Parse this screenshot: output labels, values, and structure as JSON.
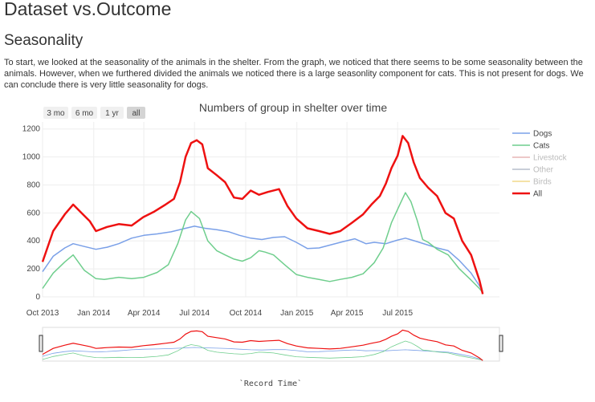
{
  "page": {
    "title": "Dataset vs.Outcome",
    "section_heading": "Seasonality",
    "paragraph": "To start, we looked at the seasonality of the animals in the shelter. From the graph, we noticed that there seems to be some seasonality between the animals. However, when we furthered divided the animals we noticed there is a large seasonlity component for cats. This is not present for dogs. We can conclude there is very little seasonality for dogs."
  },
  "range_buttons": [
    "3 mo",
    "6 mo",
    "1 yr",
    "all"
  ],
  "active_button": "all",
  "chart_data": {
    "type": "line",
    "title": "Numbers of group in shelter over time",
    "xlabel": "",
    "ylabel": "",
    "rangeslider_label": "`Record Time`",
    "x_range": [
      "2013-10-01",
      "2015-12-31"
    ],
    "ylim": [
      0,
      1250
    ],
    "y_ticks": [
      0,
      200,
      400,
      600,
      800,
      1000,
      1200
    ],
    "x_ticks": [
      {
        "date": "2013-10-01",
        "label": "Oct 2013"
      },
      {
        "date": "2014-01-01",
        "label": "Jan 2014"
      },
      {
        "date": "2014-04-01",
        "label": "Apr 2014"
      },
      {
        "date": "2014-07-01",
        "label": "Jul 2014"
      },
      {
        "date": "2014-10-01",
        "label": "Oct 2014"
      },
      {
        "date": "2015-01-01",
        "label": "Jan 2015"
      },
      {
        "date": "2015-04-01",
        "label": "Apr 2015"
      },
      {
        "date": "2015-07-01",
        "label": "Jul 2015"
      }
    ],
    "grid": true,
    "legend_position": "right",
    "series": [
      {
        "name": "Dogs",
        "color": "#7aa0e8",
        "width": 1.5,
        "visible": true,
        "points": [
          [
            "2013-10-01",
            180
          ],
          [
            "2013-10-20",
            290
          ],
          [
            "2013-11-10",
            350
          ],
          [
            "2013-11-25",
            380
          ],
          [
            "2013-12-15",
            360
          ],
          [
            "2014-01-05",
            340
          ],
          [
            "2014-01-25",
            355
          ],
          [
            "2014-02-15",
            380
          ],
          [
            "2014-03-10",
            420
          ],
          [
            "2014-04-01",
            440
          ],
          [
            "2014-04-25",
            450
          ],
          [
            "2014-05-20",
            465
          ],
          [
            "2014-06-15",
            490
          ],
          [
            "2014-07-01",
            505
          ],
          [
            "2014-07-20",
            490
          ],
          [
            "2014-08-10",
            480
          ],
          [
            "2014-09-01",
            465
          ],
          [
            "2014-09-20",
            440
          ],
          [
            "2014-10-10",
            420
          ],
          [
            "2014-10-30",
            410
          ],
          [
            "2014-11-20",
            425
          ],
          [
            "2014-12-10",
            430
          ],
          [
            "2014-12-31",
            390
          ],
          [
            "2015-01-20",
            345
          ],
          [
            "2015-02-10",
            350
          ],
          [
            "2015-03-01",
            370
          ],
          [
            "2015-03-25",
            395
          ],
          [
            "2015-04-15",
            415
          ],
          [
            "2015-05-05",
            380
          ],
          [
            "2015-05-20",
            390
          ],
          [
            "2015-06-10",
            380
          ],
          [
            "2015-06-30",
            405
          ],
          [
            "2015-07-15",
            420
          ],
          [
            "2015-08-05",
            395
          ],
          [
            "2015-08-25",
            370
          ],
          [
            "2015-09-10",
            350
          ],
          [
            "2015-09-30",
            330
          ],
          [
            "2015-10-20",
            260
          ],
          [
            "2015-11-10",
            170
          ],
          [
            "2015-11-25",
            80
          ],
          [
            "2015-12-01",
            40
          ]
        ]
      },
      {
        "name": "Cats",
        "color": "#6fce8d",
        "width": 1.5,
        "visible": true,
        "points": [
          [
            "2013-10-01",
            60
          ],
          [
            "2013-10-20",
            170
          ],
          [
            "2013-11-10",
            250
          ],
          [
            "2013-11-25",
            300
          ],
          [
            "2013-12-15",
            190
          ],
          [
            "2014-01-05",
            130
          ],
          [
            "2014-01-20",
            125
          ],
          [
            "2014-02-15",
            140
          ],
          [
            "2014-03-10",
            130
          ],
          [
            "2014-04-01",
            140
          ],
          [
            "2014-04-25",
            175
          ],
          [
            "2014-05-15",
            230
          ],
          [
            "2014-06-01",
            380
          ],
          [
            "2014-06-15",
            550
          ],
          [
            "2014-06-25",
            610
          ],
          [
            "2014-07-10",
            560
          ],
          [
            "2014-07-25",
            400
          ],
          [
            "2014-08-10",
            330
          ],
          [
            "2014-08-25",
            300
          ],
          [
            "2014-09-10",
            270
          ],
          [
            "2014-09-25",
            255
          ],
          [
            "2014-10-10",
            280
          ],
          [
            "2014-10-25",
            330
          ],
          [
            "2014-11-05",
            320
          ],
          [
            "2014-11-20",
            300
          ],
          [
            "2014-12-10",
            230
          ],
          [
            "2014-12-31",
            160
          ],
          [
            "2015-01-20",
            140
          ],
          [
            "2015-02-10",
            125
          ],
          [
            "2015-03-01",
            110
          ],
          [
            "2015-03-20",
            125
          ],
          [
            "2015-04-10",
            140
          ],
          [
            "2015-04-30",
            165
          ],
          [
            "2015-05-20",
            245
          ],
          [
            "2015-06-05",
            350
          ],
          [
            "2015-06-20",
            530
          ],
          [
            "2015-07-05",
            660
          ],
          [
            "2015-07-15",
            745
          ],
          [
            "2015-07-25",
            680
          ],
          [
            "2015-08-05",
            550
          ],
          [
            "2015-08-15",
            410
          ],
          [
            "2015-08-25",
            390
          ],
          [
            "2015-09-10",
            340
          ],
          [
            "2015-09-30",
            300
          ],
          [
            "2015-10-20",
            200
          ],
          [
            "2015-11-10",
            120
          ],
          [
            "2015-11-25",
            60
          ],
          [
            "2015-12-01",
            30
          ]
        ]
      },
      {
        "name": "Livestock",
        "color": "#e7b5b5",
        "width": 1,
        "visible": false,
        "points": []
      },
      {
        "name": "Other",
        "color": "#b5bdcc",
        "width": 1,
        "visible": false,
        "points": []
      },
      {
        "name": "Birds",
        "color": "#f2d98a",
        "width": 1,
        "visible": false,
        "points": []
      },
      {
        "name": "All",
        "color": "#ee1111",
        "width": 2.5,
        "visible": true,
        "points": [
          [
            "2013-10-01",
            250
          ],
          [
            "2013-10-20",
            470
          ],
          [
            "2013-11-10",
            590
          ],
          [
            "2013-11-25",
            660
          ],
          [
            "2013-12-10",
            600
          ],
          [
            "2013-12-25",
            540
          ],
          [
            "2014-01-05",
            470
          ],
          [
            "2014-01-25",
            500
          ],
          [
            "2014-02-15",
            520
          ],
          [
            "2014-03-10",
            510
          ],
          [
            "2014-03-31",
            570
          ],
          [
            "2014-04-20",
            610
          ],
          [
            "2014-05-10",
            660
          ],
          [
            "2014-05-25",
            700
          ],
          [
            "2014-06-05",
            820
          ],
          [
            "2014-06-15",
            1000
          ],
          [
            "2014-06-25",
            1100
          ],
          [
            "2014-07-05",
            1120
          ],
          [
            "2014-07-15",
            1090
          ],
          [
            "2014-07-25",
            920
          ],
          [
            "2014-08-10",
            870
          ],
          [
            "2014-08-25",
            820
          ],
          [
            "2014-09-10",
            710
          ],
          [
            "2014-09-25",
            700
          ],
          [
            "2014-10-10",
            760
          ],
          [
            "2014-10-25",
            730
          ],
          [
            "2014-11-10",
            750
          ],
          [
            "2014-11-30",
            770
          ],
          [
            "2014-12-15",
            650
          ],
          [
            "2014-12-31",
            560
          ],
          [
            "2015-01-20",
            490
          ],
          [
            "2015-02-10",
            470
          ],
          [
            "2015-03-01",
            450
          ],
          [
            "2015-03-20",
            470
          ],
          [
            "2015-04-10",
            530
          ],
          [
            "2015-04-30",
            590
          ],
          [
            "2015-05-15",
            660
          ],
          [
            "2015-05-30",
            720
          ],
          [
            "2015-06-10",
            810
          ],
          [
            "2015-06-20",
            920
          ],
          [
            "2015-07-01",
            1010
          ],
          [
            "2015-07-10",
            1150
          ],
          [
            "2015-07-20",
            1100
          ],
          [
            "2015-07-30",
            960
          ],
          [
            "2015-08-10",
            850
          ],
          [
            "2015-08-25",
            780
          ],
          [
            "2015-09-10",
            720
          ],
          [
            "2015-09-25",
            600
          ],
          [
            "2015-10-10",
            560
          ],
          [
            "2015-10-25",
            400
          ],
          [
            "2015-11-10",
            300
          ],
          [
            "2015-11-25",
            120
          ],
          [
            "2015-12-01",
            20
          ]
        ]
      }
    ]
  }
}
